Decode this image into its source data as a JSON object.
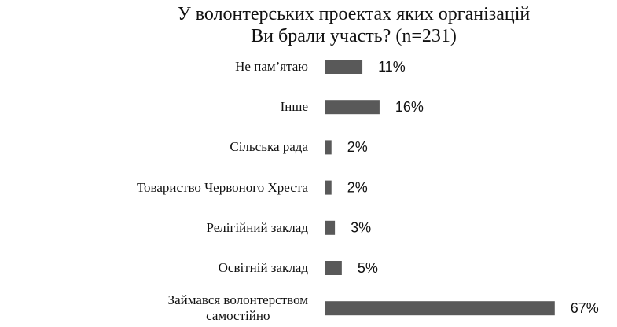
{
  "chart_data": {
    "type": "barh",
    "title": "У волонтерських проектах яких організацій\nВи брали участь? (n=231)",
    "categories": [
      "Не пам’ятаю",
      "Інше",
      "Сільська рада",
      "Товариство Червоного Хреста",
      "Релігійний заклад",
      "Освітній заклад",
      "Займався волонтерством\nсамостійно"
    ],
    "values": [
      11,
      16,
      2,
      2,
      3,
      5,
      67
    ],
    "value_labels": [
      "11%",
      "16%",
      "2%",
      "2%",
      "3%",
      "5%",
      "67%"
    ],
    "color": "#595959"
  }
}
